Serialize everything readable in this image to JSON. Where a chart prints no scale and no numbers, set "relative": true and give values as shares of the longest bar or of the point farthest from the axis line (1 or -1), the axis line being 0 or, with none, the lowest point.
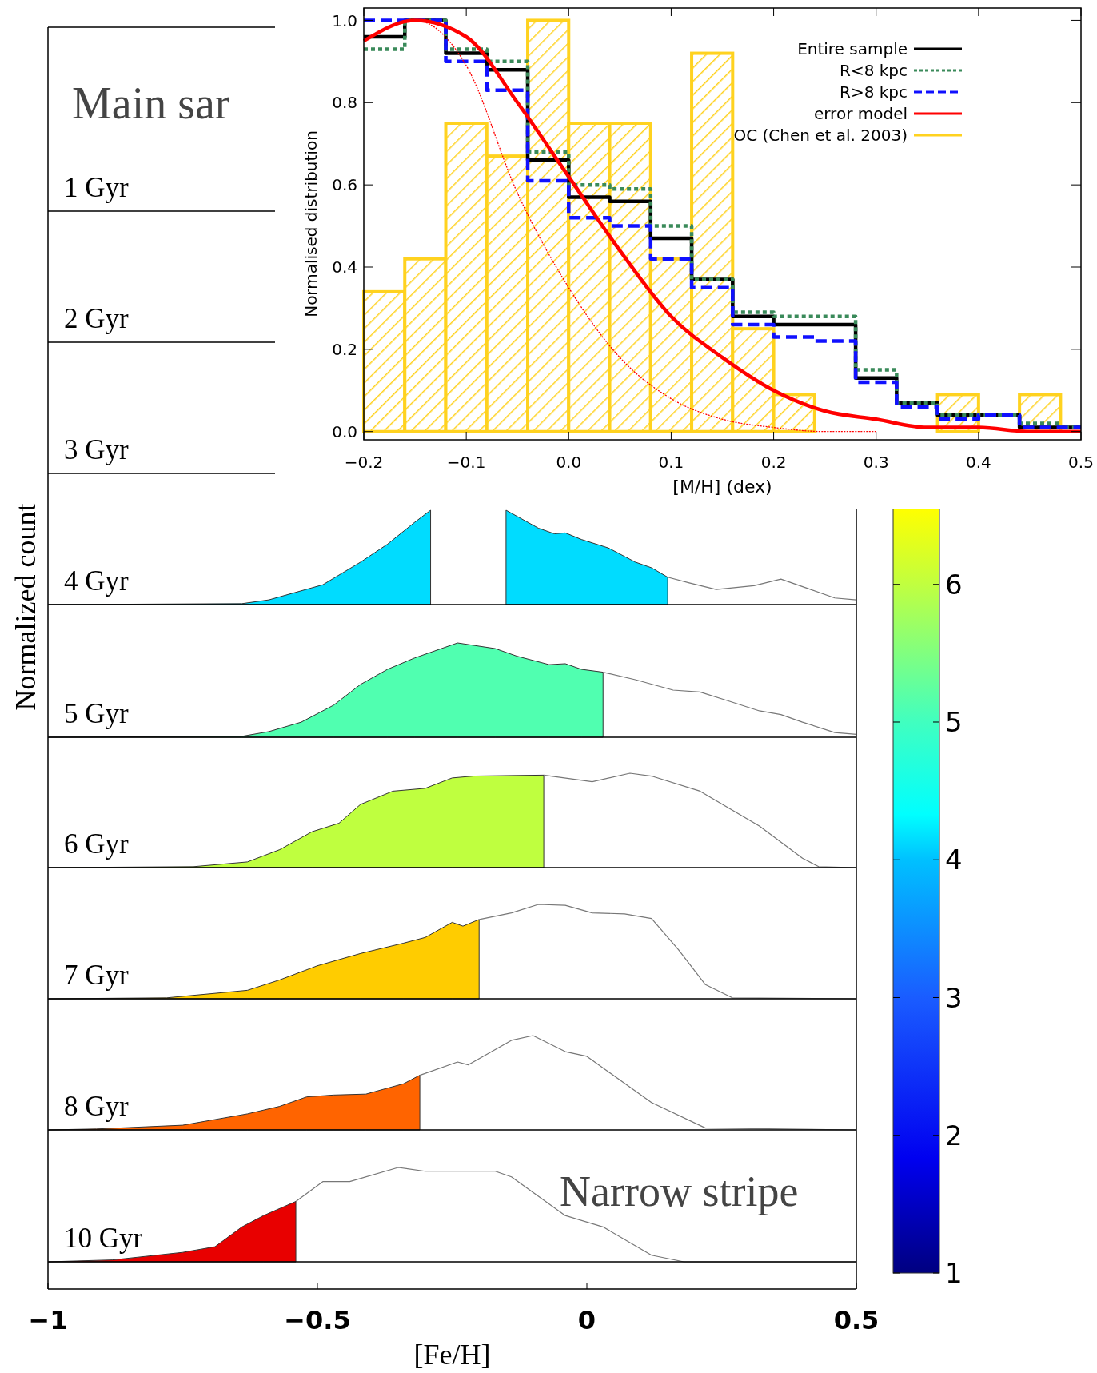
{
  "chart_data": [
    {
      "type": "other",
      "title": "Main sar",
      "annotations": [
        "1 Gyr"
      ]
    },
    {
      "type": "other",
      "annotations": [
        "2 Gyr"
      ]
    },
    {
      "type": "other",
      "annotations": [
        "3 Gyr"
      ]
    },
    {
      "type": "area",
      "relative": true,
      "xlim": [
        -1,
        0.5
      ],
      "tick_labels": false,
      "series": [
        {
          "name": "4 Gyr",
          "color": "#00dcff",
          "x": [
            -1,
            -0.64,
            -0.59,
            -0.49,
            -0.42,
            -0.37,
            -0.32,
            -0.29,
            -0.22,
            -0.15,
            -0.09,
            -0.06,
            -0.04,
            -0.01,
            0.04,
            0.09,
            0.12,
            0.15
          ],
          "values": [
            0,
            0.01,
            0.05,
            0.21,
            0.45,
            0.64,
            0.87,
            1,
            null,
            1,
            0.81,
            0.75,
            0.76,
            0.69,
            0.6,
            0.45,
            0.39,
            0.29
          ]
        },
        {
          "type": "line",
          "color": "#777777",
          "x": [
            0.15,
            0.19,
            0.24,
            0.31,
            0.36,
            0.41,
            0.46,
            0.5
          ],
          "values": [
            0.29,
            0.23,
            0.16,
            0.2,
            0.27,
            0.17,
            0.07,
            0.05
          ]
        }
      ]
    },
    {
      "type": "area",
      "relative": true,
      "xlim": [
        -1,
        0.5
      ],
      "tick_labels": false,
      "ylabel": "Normalized count",
      "series": [
        {
          "name": "5 Gyr",
          "color": "#50ffb0",
          "x": [
            -1,
            -0.64,
            -0.59,
            -0.53,
            -0.47,
            -0.42,
            -0.37,
            -0.32,
            -0.27,
            -0.24,
            -0.17,
            -0.13,
            -0.07,
            -0.04,
            -0.01,
            0.03
          ],
          "values": [
            0,
            0.01,
            0.06,
            0.16,
            0.34,
            0.56,
            0.72,
            0.84,
            0.94,
            1,
            0.94,
            0.86,
            0.77,
            0.78,
            0.72,
            0.69
          ]
        },
        {
          "type": "line",
          "color": "#777777",
          "x": [
            0.03,
            0.09,
            0.16,
            0.21,
            0.26,
            0.32,
            0.36,
            0.4,
            0.46,
            0.5
          ],
          "values": [
            0.69,
            0.61,
            0.5,
            0.48,
            0.39,
            0.28,
            0.24,
            0.16,
            0.05,
            0.03
          ]
        }
      ]
    },
    {
      "type": "area",
      "relative": true,
      "xlim": [
        -1,
        0.5
      ],
      "tick_labels": false,
      "series": [
        {
          "name": "6 Gyr",
          "color": "#bfff3f",
          "x": [
            -1,
            -0.73,
            -0.63,
            -0.57,
            -0.51,
            -0.46,
            -0.42,
            -0.36,
            -0.3,
            -0.25,
            -0.21,
            -0.08
          ],
          "values": [
            0,
            0.01,
            0.06,
            0.19,
            0.38,
            0.47,
            0.67,
            0.81,
            0.84,
            0.95,
            0.97,
            0.98
          ]
        },
        {
          "type": "line",
          "color": "#777777",
          "x": [
            -0.08,
            0.01,
            0.08,
            0.12,
            0.21,
            0.32,
            0.4,
            0.43,
            0.5
          ],
          "values": [
            0.98,
            0.91,
            1,
            0.97,
            0.81,
            0.44,
            0.1,
            0.01,
            0
          ]
        }
      ]
    },
    {
      "type": "area",
      "relative": true,
      "xlim": [
        -1,
        0.5
      ],
      "tick_labels": false,
      "series": [
        {
          "name": "7 Gyr",
          "color": "#ffcc00",
          "x": [
            -1,
            -0.78,
            -0.63,
            -0.57,
            -0.5,
            -0.42,
            -0.34,
            -0.3,
            -0.25,
            -0.23,
            -0.2
          ],
          "values": [
            0,
            0.01,
            0.09,
            0.2,
            0.35,
            0.48,
            0.59,
            0.65,
            0.81,
            0.77,
            0.84
          ]
        },
        {
          "type": "line",
          "color": "#777777",
          "x": [
            -0.2,
            -0.14,
            -0.09,
            -0.04,
            0.01,
            0.07,
            0.12,
            0.17,
            0.22,
            0.27,
            0.5
          ],
          "values": [
            0.84,
            0.91,
            1,
            0.99,
            0.91,
            0.9,
            0.85,
            0.52,
            0.15,
            0.01,
            0
          ]
        }
      ]
    },
    {
      "type": "area",
      "relative": true,
      "xlim": [
        -1,
        0.5
      ],
      "tick_labels": false,
      "series": [
        {
          "name": "8 Gyr",
          "color": "#ff6400",
          "x": [
            -1,
            -0.91,
            -0.75,
            -0.63,
            -0.57,
            -0.52,
            -0.47,
            -0.41,
            -0.34,
            -0.31
          ],
          "values": [
            0,
            0.01,
            0.05,
            0.17,
            0.25,
            0.35,
            0.37,
            0.38,
            0.49,
            0.58
          ]
        },
        {
          "type": "line",
          "color": "#777777",
          "x": [
            -0.31,
            -0.24,
            -0.22,
            -0.14,
            -0.1,
            -0.04,
            0,
            0.12,
            0.22,
            0.5
          ],
          "values": [
            0.58,
            0.72,
            0.69,
            0.95,
            1,
            0.83,
            0.78,
            0.29,
            0.02,
            0
          ]
        }
      ]
    },
    {
      "type": "area",
      "relative": true,
      "xlim": [
        -1,
        0.5
      ],
      "xticks": [
        {
          "value": -1,
          "label": "−1"
        },
        {
          "value": -0.5,
          "label": "−0.5"
        },
        0,
        0.5
      ],
      "xlabel": "[Fe/H]",
      "annotations": [
        "Narrow stripe"
      ],
      "clim": [
        1,
        6.55
      ],
      "cticks": [
        1,
        2,
        3,
        4,
        5,
        6
      ],
      "series": [
        {
          "name": "10 Gyr",
          "color": "#e80000",
          "x": [
            -1,
            -0.88,
            -0.75,
            -0.69,
            -0.64,
            -0.6,
            -0.54
          ],
          "values": [
            0,
            0.02,
            0.1,
            0.16,
            0.37,
            0.49,
            0.64
          ]
        },
        {
          "type": "line",
          "color": "#777777",
          "x": [
            -0.54,
            -0.49,
            -0.44,
            -0.35,
            -0.3,
            -0.17,
            -0.14,
            -0.04,
            0.03,
            0.12,
            0.18,
            0.5
          ],
          "values": [
            0.64,
            0.85,
            0.85,
            1,
            0.96,
            0.96,
            0.9,
            0.49,
            0.37,
            0.07,
            0,
            0
          ]
        }
      ]
    },
    {
      "type": "step",
      "xlabel": "[M/H] (dex)",
      "ylabel": "Normalised distribution",
      "xlim": [
        -0.2,
        0.5
      ],
      "ylim": [
        -0.02,
        1.03
      ],
      "xticks": [
        {
          "value": -0.2,
          "label": "−0.2"
        },
        {
          "value": -0.1,
          "label": "−0.1"
        },
        {
          "value": 0,
          "label": "0.0"
        },
        0.1,
        0.2,
        0.3,
        0.4,
        0.5
      ],
      "yticks": [
        {
          "value": 0,
          "label": "0.0"
        },
        0.2,
        0.4,
        0.6,
        0.8,
        {
          "value": 1,
          "label": "1.0"
        }
      ],
      "legend": "top right",
      "series": [
        {
          "name": "Entire sample",
          "color": "#000000",
          "line_style": "solid",
          "x": [
            -0.2,
            -0.16,
            -0.12,
            -0.08,
            -0.04,
            0,
            0.04,
            0.08,
            0.12,
            0.16,
            0.2,
            0.24,
            0.28,
            0.32,
            0.36,
            0.4,
            0.44,
            0.48,
            0.5
          ],
          "values": [
            0.96,
            1.0,
            0.92,
            0.88,
            0.66,
            0.57,
            0.56,
            0.47,
            0.37,
            0.28,
            0.26,
            0.26,
            0.13,
            0.07,
            0.04,
            0.04,
            0.01,
            0.01,
            0.01
          ]
        },
        {
          "name": "R<8 kpc",
          "color": "#3a8a5a",
          "line_style": "dotted",
          "x": [
            -0.2,
            -0.16,
            -0.12,
            -0.08,
            -0.04,
            0,
            0.04,
            0.08,
            0.12,
            0.16,
            0.2,
            0.24,
            0.28,
            0.32,
            0.36,
            0.4,
            0.44,
            0.48,
            0.5
          ],
          "values": [
            0.93,
            1.0,
            0.93,
            0.9,
            0.68,
            0.6,
            0.59,
            0.5,
            0.37,
            0.29,
            0.28,
            0.28,
            0.15,
            0.07,
            0.04,
            0.04,
            0.02,
            0.01,
            0.01
          ]
        },
        {
          "name": "R>8 kpc",
          "color": "#1010ff",
          "line_style": "dashed",
          "x": [
            -0.2,
            -0.16,
            -0.12,
            -0.08,
            -0.04,
            0,
            0.04,
            0.08,
            0.12,
            0.16,
            0.2,
            0.24,
            0.28,
            0.32,
            0.36,
            0.4,
            0.44,
            0.48,
            0.5
          ],
          "values": [
            1.0,
            1.0,
            0.9,
            0.83,
            0.61,
            0.52,
            0.5,
            0.42,
            0.35,
            0.26,
            0.23,
            0.22,
            0.12,
            0.06,
            0.03,
            0.04,
            0.01,
            0.01,
            0.01
          ]
        },
        {
          "name": "error model",
          "type": "line",
          "color": "#ff0000",
          "line_style": "solid",
          "x": [
            -0.2,
            -0.15,
            -0.1,
            -0.05,
            0,
            0.05,
            0.1,
            0.15,
            0.2,
            0.25,
            0.3,
            0.35,
            0.4,
            0.45,
            0.5
          ],
          "values": [
            0.95,
            1.0,
            0.96,
            0.8,
            0.62,
            0.44,
            0.28,
            0.18,
            0.1,
            0.05,
            0.03,
            0.01,
            0.01,
            0,
            0
          ]
        },
        {
          "name": "OC (Chen et al. 2003)",
          "type": "histogram",
          "color": "#ffd21f",
          "bins": [
            -0.2,
            -0.16,
            -0.12,
            -0.08,
            -0.04,
            0,
            0.04,
            0.08,
            0.12,
            0.16,
            0.2,
            0.24,
            0.28,
            0.32,
            0.36,
            0.4,
            0.44,
            0.48
          ],
          "values": [
            0.34,
            0.42,
            0.75,
            0.67,
            1.0,
            0.75,
            0.75,
            0.42,
            0.92,
            0.25,
            0.09,
            0,
            0,
            0,
            0.09,
            0,
            0.09
          ]
        },
        {
          "type": "line",
          "color": "#ff0000",
          "line_style": "dotted",
          "x": [
            -0.2,
            -0.15,
            -0.1,
            -0.05,
            0,
            0.05,
            0.1,
            0.15,
            0.2,
            0.25,
            0.3
          ],
          "values": [
            0.95,
            1.0,
            0.89,
            0.58,
            0.35,
            0.18,
            0.08,
            0.03,
            0.01,
            0,
            0
          ]
        }
      ]
    }
  ]
}
